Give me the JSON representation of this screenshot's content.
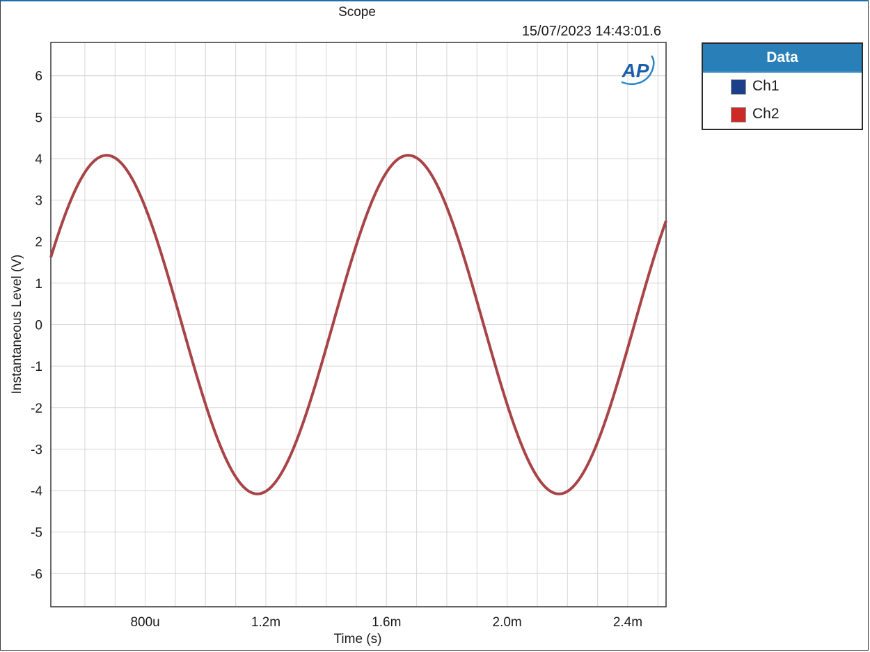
{
  "chart_data": {
    "type": "line",
    "title": "Scope",
    "timestamp": "15/07/2023 14:43:01.6",
    "xlabel": "Time (s)",
    "ylabel": "Instantaneous Level (V)",
    "xlim": [
      0.000487,
      0.002527
    ],
    "ylim": [
      -6.8,
      6.8
    ],
    "x_ticks": [
      {
        "value": 0.0008,
        "label": "800u"
      },
      {
        "value": 0.0012,
        "label": "1.2m"
      },
      {
        "value": 0.0016,
        "label": "1.6m"
      },
      {
        "value": 0.002,
        "label": "2.0m"
      },
      {
        "value": 0.0024,
        "label": "2.4m"
      }
    ],
    "x_minor_grid": [
      0.0006,
      0.0007,
      0.0008,
      0.0009,
      0.001,
      0.0011,
      0.0012,
      0.0013,
      0.0014,
      0.0015,
      0.0016,
      0.0017,
      0.0018,
      0.0019,
      0.002,
      0.0021,
      0.0022,
      0.0023,
      0.0024,
      0.0025
    ],
    "y_ticks": [
      {
        "value": 6,
        "label": "6"
      },
      {
        "value": 5,
        "label": "5"
      },
      {
        "value": 4,
        "label": "4"
      },
      {
        "value": 3,
        "label": "3"
      },
      {
        "value": 2,
        "label": "2"
      },
      {
        "value": 1,
        "label": "1"
      },
      {
        "value": 0,
        "label": "0"
      },
      {
        "value": -1,
        "label": "-1"
      },
      {
        "value": -2,
        "label": "-2"
      },
      {
        "value": -3,
        "label": "-3"
      },
      {
        "value": -4,
        "label": "-4"
      },
      {
        "value": -5,
        "label": "-5"
      },
      {
        "value": -6,
        "label": "-6"
      }
    ],
    "grid": true,
    "legend_position": "right",
    "legend_title": "Data",
    "logo": "AP",
    "series": [
      {
        "name": "Ch1",
        "color": "#1c3f8a",
        "amplitude": 4.08,
        "frequency_hz": 1000,
        "peak_time": 0.000672
      },
      {
        "name": "Ch2",
        "color": "#cc2a27",
        "amplitude": 4.08,
        "frequency_hz": 1000,
        "peak_time": 0.000672
      }
    ],
    "trace_color": "#a84447"
  }
}
